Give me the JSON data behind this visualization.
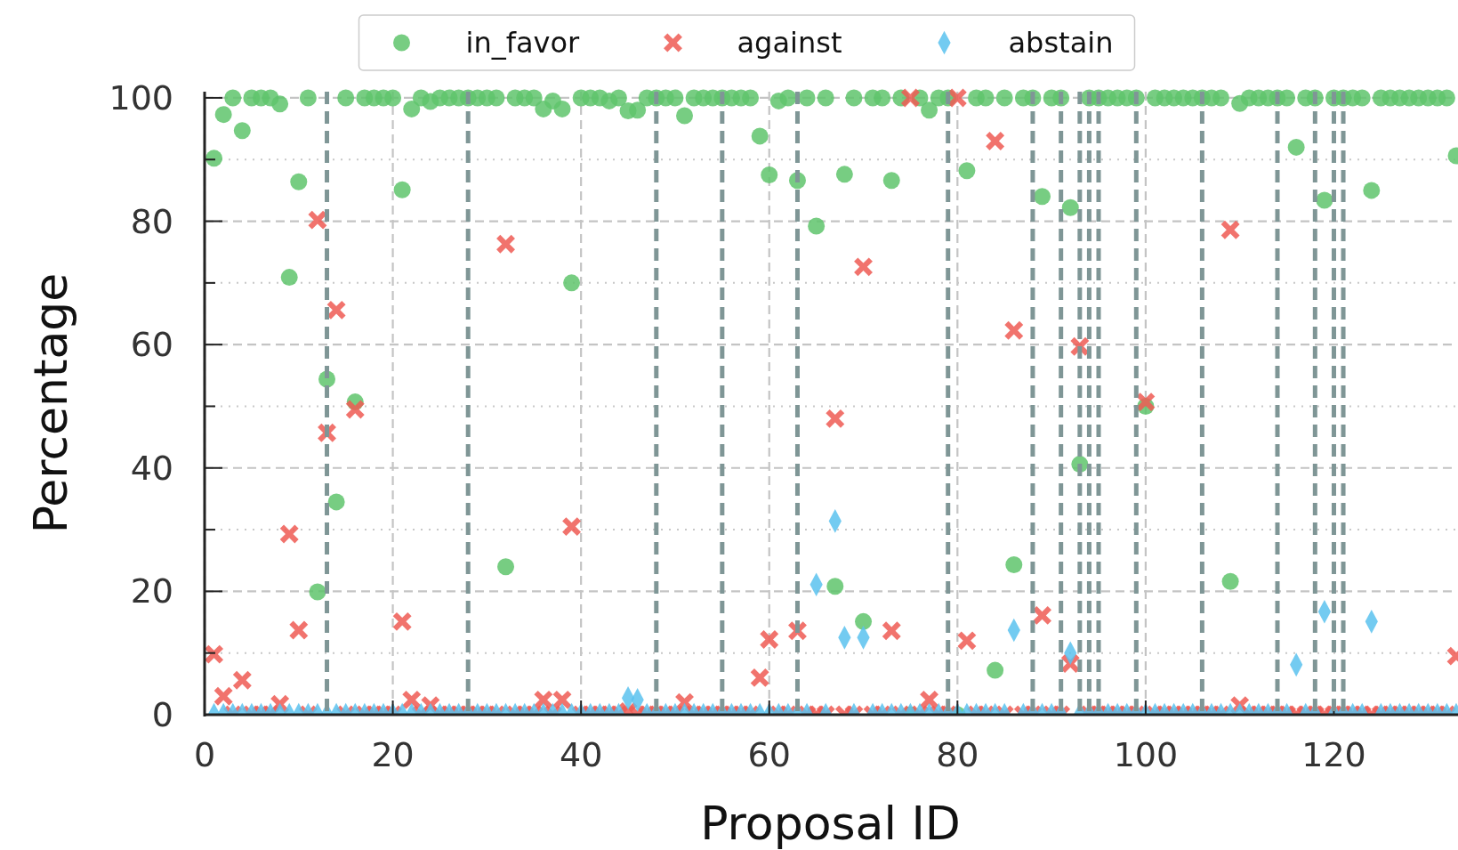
{
  "chart_data": {
    "type": "scatter",
    "xlabel": "Proposal ID",
    "ylabel": "Percentage",
    "legend": "top",
    "grid": true,
    "x": [
      1,
      2,
      3,
      4,
      5,
      6,
      7,
      8,
      9,
      10,
      11,
      12,
      13,
      14,
      15,
      16,
      17,
      18,
      19,
      20,
      21,
      22,
      23,
      24,
      25,
      26,
      27,
      28,
      29,
      30,
      31,
      32,
      33,
      34,
      35,
      36,
      37,
      38,
      39,
      40,
      41,
      42,
      43,
      44,
      45,
      46,
      47,
      48,
      49,
      50,
      51,
      52,
      53,
      54,
      55,
      56,
      57,
      58,
      59,
      60,
      61,
      62,
      63,
      64,
      65,
      66,
      67,
      68,
      69,
      70,
      71,
      72,
      73,
      74,
      75,
      76,
      77,
      78,
      79,
      80,
      81,
      82,
      83,
      84,
      85,
      86,
      87,
      88,
      89,
      90,
      91,
      92,
      93,
      94,
      95,
      96,
      97,
      98,
      99,
      100,
      101,
      102,
      103,
      104,
      105,
      106,
      107,
      108,
      109,
      110,
      111,
      112,
      113,
      114,
      115,
      116,
      117,
      118,
      119,
      120,
      121,
      122,
      123,
      124,
      125,
      126,
      127,
      128,
      129,
      130,
      131,
      132,
      133
    ],
    "xlim": [
      0,
      133
    ],
    "ylim": [
      0,
      101
    ],
    "xticks": [
      0,
      20,
      40,
      60,
      80,
      100,
      120
    ],
    "yticks": [
      0,
      {
        "value": 10,
        "label": null
      },
      20,
      {
        "value": 30,
        "label": null
      },
      40,
      {
        "value": 50,
        "label": null
      },
      60,
      {
        "value": 70,
        "label": null
      },
      80,
      {
        "value": 90,
        "label": null
      },
      100
    ],
    "ref_lines": [
      {
        "axis": "x",
        "value": 13,
        "color": "#7f9696",
        "line_style": "dashed"
      },
      {
        "axis": "x",
        "value": 28,
        "color": "#7f9696",
        "line_style": "dashed"
      },
      {
        "axis": "x",
        "value": 48,
        "color": "#7f9696",
        "line_style": "dashed"
      },
      {
        "axis": "x",
        "value": 55,
        "color": "#7f9696",
        "line_style": "dashed"
      },
      {
        "axis": "x",
        "value": 63,
        "color": "#7f9696",
        "line_style": "dashed"
      },
      {
        "axis": "x",
        "value": 79,
        "color": "#7f9696",
        "line_style": "dashed"
      },
      {
        "axis": "x",
        "value": 88,
        "color": "#7f9696",
        "line_style": "dashed"
      },
      {
        "axis": "x",
        "value": 91,
        "color": "#7f9696",
        "line_style": "dashed"
      },
      {
        "axis": "x",
        "value": 93,
        "color": "#7f9696",
        "line_style": "dashed"
      },
      {
        "axis": "x",
        "value": 94,
        "color": "#7f9696",
        "line_style": "dashed"
      },
      {
        "axis": "x",
        "value": 95,
        "color": "#7f9696",
        "line_style": "dashed"
      },
      {
        "axis": "x",
        "value": 99,
        "color": "#7f9696",
        "line_style": "dashed"
      },
      {
        "axis": "x",
        "value": 106,
        "color": "#7f9696",
        "line_style": "dashed"
      },
      {
        "axis": "x",
        "value": 114,
        "color": "#7f9696",
        "line_style": "dashed"
      },
      {
        "axis": "x",
        "value": 118,
        "color": "#7f9696",
        "line_style": "dashed"
      },
      {
        "axis": "x",
        "value": 120,
        "color": "#7f9696",
        "line_style": "dashed"
      },
      {
        "axis": "x",
        "value": 121,
        "color": "#7f9696",
        "line_style": "dashed"
      }
    ],
    "series": [
      {
        "name": "in_favor",
        "color": "#5fc46c",
        "marker": "circle",
        "values": [
          90.2,
          97.3,
          100,
          94.7,
          100,
          100,
          100,
          99,
          70.9,
          86.4,
          100,
          19.9,
          54.4,
          34.5,
          100,
          50.7,
          100,
          100,
          100,
          100,
          85.1,
          98.2,
          100,
          99.4,
          100,
          100,
          100,
          100,
          100,
          100,
          100,
          24,
          100,
          100,
          100,
          98.2,
          99.5,
          98.2,
          70,
          100,
          100,
          100,
          99.5,
          100,
          97.9,
          98,
          100,
          100,
          100,
          100,
          97.1,
          100,
          100,
          100,
          100,
          100,
          100,
          100,
          93.8,
          87.5,
          99.5,
          100,
          86.6,
          100,
          79.2,
          100,
          20.8,
          87.6,
          100,
          15.1,
          100,
          100,
          86.6,
          100,
          0,
          100,
          98,
          100,
          100,
          0,
          88.2,
          100,
          100,
          7.2,
          100,
          24.3,
          100,
          100,
          84,
          100,
          100,
          82.2,
          40.6,
          100,
          100,
          100,
          100,
          100,
          100,
          50,
          100,
          100,
          100,
          100,
          100,
          100,
          100,
          100,
          21.6,
          99.1,
          100,
          100,
          100,
          100,
          100,
          92,
          100,
          100,
          83.4,
          100,
          100,
          100,
          100,
          85,
          100,
          100,
          100,
          100,
          100,
          100,
          100,
          100,
          90.6
        ]
      },
      {
        "name": "against",
        "color": "#ef5a54",
        "marker": "cross",
        "values": [
          9.8,
          3,
          0,
          5.6,
          0,
          0,
          0,
          1.7,
          29.3,
          13.7,
          0,
          80.2,
          45.7,
          65.6,
          0,
          49.5,
          0,
          0,
          0,
          0,
          15.1,
          2.4,
          0,
          1.5,
          0,
          0,
          0,
          0,
          0,
          0,
          0,
          76.3,
          0,
          0,
          0,
          2.4,
          0,
          2.4,
          30.5,
          0,
          0,
          0,
          0,
          0,
          0.5,
          0,
          0,
          0,
          0,
          0,
          2,
          0,
          0,
          0,
          0,
          0,
          0,
          0,
          6,
          12.2,
          0,
          0,
          13.6,
          0,
          0,
          0,
          48,
          0,
          0,
          72.6,
          0,
          0,
          13.6,
          0,
          100,
          0,
          2.4,
          0,
          0,
          100,
          12,
          0,
          0,
          93,
          0,
          62.3,
          0,
          0,
          16.1,
          0,
          0,
          8.3,
          59.7,
          0,
          0,
          0,
          0,
          0,
          0,
          50.7,
          0,
          0,
          0,
          0,
          0,
          0,
          0,
          0,
          78.6,
          1.5,
          0,
          0,
          0,
          0,
          0,
          0,
          0,
          0,
          0,
          0,
          0,
          0,
          0,
          0,
          0,
          0,
          0,
          0,
          0,
          0,
          0,
          0,
          9.5
        ]
      },
      {
        "name": "abstain",
        "color": "#5bc2ee",
        "marker": "diamond",
        "values": [
          0,
          0,
          0,
          0,
          0,
          0,
          0,
          0,
          0,
          0,
          0,
          0,
          0,
          0,
          0,
          0,
          0,
          0,
          0,
          0,
          0,
          0,
          0,
          0,
          0,
          0,
          0,
          0,
          0,
          0,
          0,
          0,
          0,
          0,
          0,
          0,
          0,
          0,
          0,
          0,
          0,
          0,
          0,
          0,
          2.7,
          2.4,
          0,
          0,
          0,
          0,
          0,
          0,
          0,
          0,
          0,
          0,
          0,
          0,
          0,
          0,
          0,
          0,
          0,
          0,
          21.1,
          0,
          31.4,
          12.5,
          0,
          12.5,
          0,
          0,
          0,
          0,
          0,
          0,
          0,
          0,
          0,
          0,
          0,
          0,
          0,
          0,
          0,
          13.7,
          0,
          0,
          0,
          0,
          0,
          10,
          0,
          0,
          0,
          0,
          0,
          0,
          0,
          0,
          0,
          0,
          0,
          0,
          0,
          0,
          0,
          0,
          0,
          0,
          0,
          0,
          0,
          0,
          0,
          8.1,
          0,
          0,
          16.7,
          0,
          0,
          0,
          0,
          15.1,
          0,
          0,
          0,
          0,
          0,
          0,
          0,
          0,
          0
        ]
      }
    ]
  }
}
